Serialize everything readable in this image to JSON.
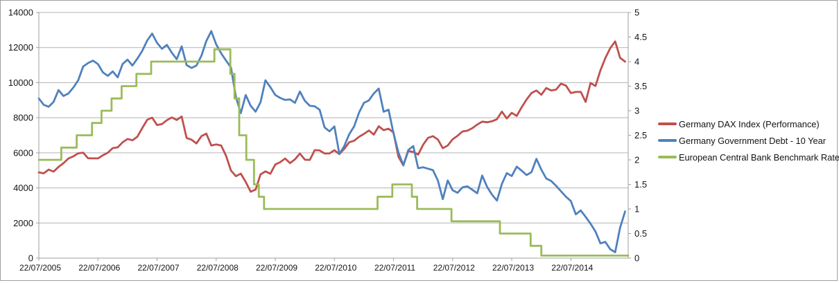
{
  "chart_data": {
    "type": "line",
    "title": "",
    "grid": "horizontal",
    "legend_position": "right",
    "x_axis": {
      "range": [
        2005.55,
        2015.52
      ],
      "tick_positions": [
        2005.55,
        2006.55,
        2007.55,
        2008.55,
        2009.55,
        2010.55,
        2011.55,
        2012.55,
        2013.55,
        2014.55
      ],
      "tick_labels": [
        "22/07/2005",
        "22/07/2006",
        "22/07/2007",
        "22/07/2008",
        "22/07/2009",
        "22/07/2010",
        "22/07/2011",
        "22/07/2012",
        "22/07/2013",
        "22/07/2014"
      ]
    },
    "y_left": {
      "range": [
        0,
        14000
      ],
      "ticks": [
        0,
        2000,
        4000,
        6000,
        8000,
        10000,
        12000,
        14000
      ]
    },
    "y_right": {
      "range": [
        0,
        5
      ],
      "ticks": [
        0,
        0.5,
        1,
        1.5,
        2,
        2.5,
        3,
        3.5,
        4,
        4.5,
        5
      ]
    },
    "colors": {
      "gridline": "#b3b3b3",
      "axis": "#9f9f9f",
      "tick_text": "#141414"
    },
    "series": [
      {
        "name": "Germany DAX Index (Performance)",
        "color": "#c0504d",
        "axis": "left",
        "mode": "monthly",
        "x_start": 2005.55,
        "values": [
          4886,
          4830,
          5044,
          4929,
          5193,
          5408,
          5674,
          5796,
          5970,
          6009,
          5692,
          5683,
          5682,
          5859,
          6004,
          6269,
          6309,
          6597,
          6789,
          6715,
          6917,
          7409,
          7883,
          8007,
          7584,
          7638,
          7861,
          8019,
          7870,
          8067,
          6851,
          6748,
          6535,
          6948,
          7096,
          6418,
          6480,
          6422,
          5831,
          4987,
          4669,
          4810,
          4338,
          3780,
          3900,
          4769,
          4940,
          4809,
          5332,
          5465,
          5675,
          5414,
          5626,
          5957,
          5609,
          5598,
          6154,
          6136,
          5964,
          5966,
          6148,
          5925,
          6229,
          6601,
          6688,
          6914,
          7077,
          7272,
          7041,
          7514,
          7293,
          7376,
          7159,
          5785,
          5280,
          6100,
          6050,
          5898,
          6459,
          6856,
          6947,
          6761,
          6264,
          6416,
          6772,
          6971,
          7216,
          7260,
          7406,
          7612,
          7776,
          7742,
          7795,
          7914,
          8349,
          7959,
          8276,
          8103,
          8594,
          9034,
          9405,
          9552,
          9306,
          9692,
          9556,
          9603,
          9943,
          9833,
          9407,
          9470,
          9474,
          8900,
          9981,
          9806,
          10694,
          11402,
          11966,
          12350,
          11414,
          11200
        ]
      },
      {
        "name": "Germany Government Debt - 10 Year",
        "color": "#4f81bd",
        "axis": "right",
        "mode": "monthly",
        "x_start": 2005.55,
        "values": [
          3.25,
          3.12,
          3.08,
          3.18,
          3.42,
          3.3,
          3.35,
          3.47,
          3.62,
          3.9,
          3.97,
          4.02,
          3.95,
          3.78,
          3.71,
          3.8,
          3.68,
          3.95,
          4.04,
          3.92,
          4.06,
          4.22,
          4.43,
          4.57,
          4.38,
          4.26,
          4.34,
          4.18,
          4.05,
          4.31,
          3.93,
          3.87,
          3.92,
          4.12,
          4.42,
          4.62,
          4.35,
          4.17,
          4.02,
          3.88,
          3.28,
          2.95,
          3.32,
          3.1,
          2.98,
          3.17,
          3.62,
          3.48,
          3.32,
          3.26,
          3.22,
          3.23,
          3.16,
          3.39,
          3.2,
          3.1,
          3.09,
          3.02,
          2.66,
          2.58,
          2.68,
          2.12,
          2.28,
          2.52,
          2.68,
          2.96,
          3.16,
          3.21,
          3.35,
          3.45,
          2.98,
          3.02,
          2.54,
          2.15,
          1.89,
          2.2,
          2.28,
          1.83,
          1.85,
          1.82,
          1.79,
          1.58,
          1.2,
          1.58,
          1.38,
          1.33,
          1.44,
          1.46,
          1.39,
          1.32,
          1.68,
          1.45,
          1.29,
          1.17,
          1.51,
          1.73,
          1.67,
          1.86,
          1.78,
          1.69,
          1.75,
          2.02,
          1.8,
          1.62,
          1.57,
          1.47,
          1.36,
          1.25,
          1.16,
          0.89,
          0.97,
          0.84,
          0.7,
          0.54,
          0.3,
          0.33,
          0.18,
          0.12,
          0.62,
          0.95
        ]
      },
      {
        "name": "European Central Bank Benchmark Rate",
        "color": "#9bbb59",
        "axis": "right",
        "mode": "step",
        "points": [
          [
            2005.55,
            2.0
          ],
          [
            2005.93,
            2.25
          ],
          [
            2006.19,
            2.5
          ],
          [
            2006.45,
            2.75
          ],
          [
            2006.61,
            3.0
          ],
          [
            2006.78,
            3.25
          ],
          [
            2006.95,
            3.5
          ],
          [
            2007.2,
            3.75
          ],
          [
            2007.45,
            4.0
          ],
          [
            2008.52,
            4.25
          ],
          [
            2008.79,
            3.75
          ],
          [
            2008.86,
            3.25
          ],
          [
            2008.94,
            2.5
          ],
          [
            2009.06,
            2.0
          ],
          [
            2009.19,
            1.5
          ],
          [
            2009.27,
            1.25
          ],
          [
            2009.36,
            1.0
          ],
          [
            2011.28,
            1.25
          ],
          [
            2011.53,
            1.5
          ],
          [
            2011.86,
            1.25
          ],
          [
            2011.95,
            1.0
          ],
          [
            2012.53,
            0.75
          ],
          [
            2013.35,
            0.5
          ],
          [
            2013.87,
            0.25
          ],
          [
            2014.05,
            0.05
          ]
        ]
      }
    ]
  },
  "legend": {
    "items": [
      "Germany DAX Index (Performance)",
      "Germany Government Debt - 10 Year",
      "European Central Bank Benchmark Rate"
    ]
  }
}
